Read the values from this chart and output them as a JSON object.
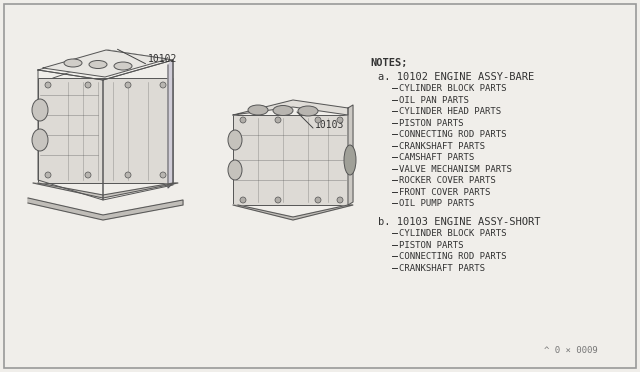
{
  "bg_color": "#f0eeea",
  "border_color": "#999999",
  "text_color": "#333333",
  "title": "NOTES;",
  "part_a_label": "a. 10102 ENGINE ASSY-BARE",
  "part_a_items": [
    "CYLINDER BLOCK PARTS",
    "OIL PAN PARTS",
    "CYLINDER HEAD PARTS",
    "PISTON PARTS",
    "CONNECTING ROD PARTS",
    "CRANKSHAFT PARTS",
    "CAMSHAFT PARTS",
    "VALVE MECHANISM PARTS",
    "ROCKER COVER PARTS",
    "FRONT COVER PARTS",
    "OIL PUMP PARTS"
  ],
  "part_b_label": "b. 10103 ENGINE ASSY-SHORT",
  "part_b_items": [
    "CYLINDER BLOCK PARTS",
    "PISTON PARTS",
    "CONNECTING ROD PARTS",
    "CRANKSHAFT PARTS"
  ],
  "label_10102": "10102",
  "label_10103": "10103",
  "footer": "^ 0 × 0009",
  "font_size_notes": 7.5,
  "font_size_items": 6.5,
  "font_size_labels": 7.0,
  "font_size_part": 7.5,
  "font_size_footer": 6.5
}
